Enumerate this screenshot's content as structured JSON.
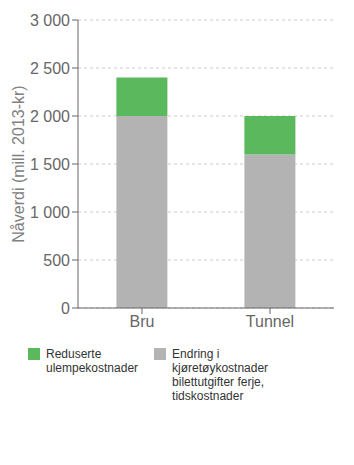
{
  "chart_data": {
    "type": "bar",
    "stacked": true,
    "categories": [
      "Bru",
      "Tunnel"
    ],
    "series": [
      {
        "name": "Endring i\nkjøretøykostnader\nbilettutgifter ferje,\ntidskostnader",
        "color": "#b3b3b3",
        "values": [
          2000,
          1600
        ]
      },
      {
        "name": "Reduserte\nulempekostnader",
        "color": "#5cb85c",
        "values": [
          400,
          400
        ]
      }
    ],
    "ylabel": "Nåverdi (mill. 2013-kr)",
    "ylim": [
      0,
      3000
    ],
    "yticks": [
      0,
      500,
      {
        "value": 1000,
        "label": "1 000"
      },
      {
        "value": 1500,
        "label": "1 500"
      },
      {
        "value": 2000,
        "label": "2 000"
      },
      {
        "value": 2500,
        "label": "2 500"
      },
      {
        "value": 3000,
        "label": "3 000"
      }
    ],
    "grid": true,
    "legend": "bottom"
  }
}
